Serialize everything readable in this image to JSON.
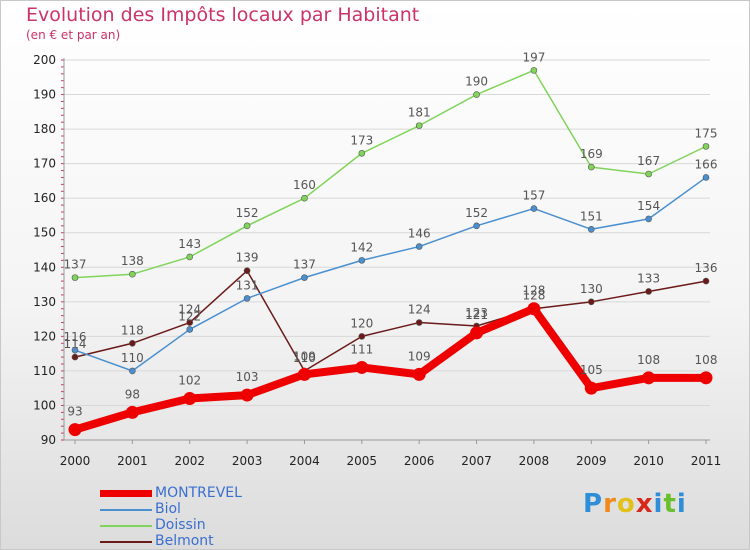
{
  "header": {
    "title": "Evolution des Impôts locaux par Habitant",
    "subtitle": "(en € et par an)"
  },
  "logo": {
    "text": "Proxiti"
  },
  "chart_data": {
    "type": "line",
    "title": "Evolution des Impôts locaux par Habitant",
    "subtitle": "(en € et par an)",
    "xlabel": "",
    "ylabel": "",
    "categories": [
      "2000",
      "2001",
      "2002",
      "2003",
      "2004",
      "2005",
      "2006",
      "2007",
      "2008",
      "2009",
      "2010",
      "2011"
    ],
    "ylim": [
      90,
      200
    ],
    "yticks": [
      90,
      100,
      110,
      120,
      130,
      140,
      150,
      160,
      170,
      180,
      190,
      200
    ],
    "grid": "horizontal",
    "legend_position": "bottom-left",
    "series": [
      {
        "name": "Belmont",
        "color": "#6b1a1a",
        "values": [
          114,
          118,
          124,
          139,
          110,
          120,
          124,
          123,
          128,
          130,
          133,
          136
        ]
      },
      {
        "name": "Doissin",
        "color": "#80d45a",
        "values": [
          137,
          138,
          143,
          152,
          160,
          173,
          181,
          190,
          197,
          169,
          167,
          175
        ]
      },
      {
        "name": "Biol",
        "color": "#4a8fd0",
        "values": [
          116,
          110,
          122,
          131,
          137,
          142,
          146,
          152,
          157,
          151,
          154,
          166
        ]
      },
      {
        "name": "MONTREVEL",
        "color": "#ee0000",
        "values": [
          93,
          98,
          102,
          103,
          109,
          111,
          109,
          121,
          128,
          105,
          108,
          108
        ]
      }
    ],
    "legend": [
      "MONTREVEL",
      "Biol",
      "Doissin",
      "Belmont"
    ]
  }
}
